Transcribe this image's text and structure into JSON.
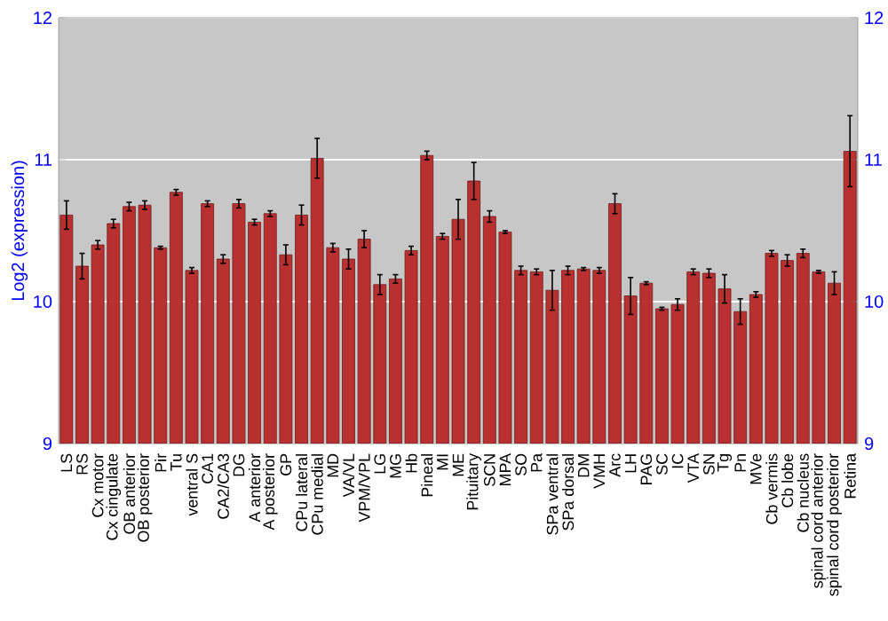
{
  "chart_data": {
    "type": "bar",
    "ylabel": "Log2 (expression)",
    "categories": [
      "LS",
      "RS",
      "Cx motor",
      "Cx cingulate",
      "OB anterior",
      "OB posterior",
      "Pir",
      "Tu",
      "ventral S",
      "CA1",
      "CA2/CA3",
      "DG",
      "A anterior",
      "A posterior",
      "GP",
      "CPu lateral",
      "CPu medial",
      "MD",
      "VA/VL",
      "VPM/VPL",
      "LG",
      "MG",
      "Hb",
      "Pineal",
      "MI",
      "ME",
      "Pituitary",
      "SCN",
      "MPA",
      "SO",
      "Pa",
      "SPa ventral",
      "SPa dorsal",
      "DM",
      "VMH",
      "Arc",
      "LH",
      "PAG",
      "SC",
      "IC",
      "VTA",
      "SN",
      "Tg",
      "Pn",
      "MVe",
      "Cb vermis",
      "Cb lobe",
      "Cb nucleus",
      "spinal cord anterior",
      "spinal cord posterior",
      "Retina"
    ],
    "values": [
      10.61,
      10.25,
      10.4,
      10.55,
      10.67,
      10.68,
      10.38,
      10.77,
      10.22,
      10.69,
      10.3,
      10.69,
      10.56,
      10.62,
      10.33,
      10.61,
      11.01,
      10.38,
      10.3,
      10.44,
      10.12,
      10.16,
      10.36,
      11.03,
      10.46,
      10.58,
      10.85,
      10.6,
      10.49,
      10.22,
      10.21,
      10.08,
      10.22,
      10.23,
      10.22,
      10.69,
      10.04,
      10.13,
      9.95,
      9.98,
      10.21,
      10.2,
      10.09,
      9.93,
      10.05,
      10.34,
      10.29,
      10.34,
      10.21,
      10.13,
      11.06
    ],
    "errors": [
      0.1,
      0.09,
      0.03,
      0.03,
      0.03,
      0.03,
      0.01,
      0.02,
      0.02,
      0.02,
      0.03,
      0.03,
      0.02,
      0.02,
      0.07,
      0.07,
      0.14,
      0.03,
      0.07,
      0.06,
      0.07,
      0.03,
      0.03,
      0.03,
      0.02,
      0.14,
      0.13,
      0.04,
      0.01,
      0.03,
      0.02,
      0.14,
      0.03,
      0.01,
      0.02,
      0.07,
      0.13,
      0.01,
      0.01,
      0.04,
      0.02,
      0.03,
      0.1,
      0.09,
      0.02,
      0.02,
      0.04,
      0.03,
      0.01,
      0.08,
      0.25
    ],
    "color": "#b83030",
    "ylim": [
      9,
      12
    ],
    "yticks": [
      9,
      10,
      11,
      12
    ],
    "y2lim": [
      9,
      12
    ],
    "y2ticks": [
      9,
      10,
      11,
      12
    ],
    "grid": "y"
  }
}
